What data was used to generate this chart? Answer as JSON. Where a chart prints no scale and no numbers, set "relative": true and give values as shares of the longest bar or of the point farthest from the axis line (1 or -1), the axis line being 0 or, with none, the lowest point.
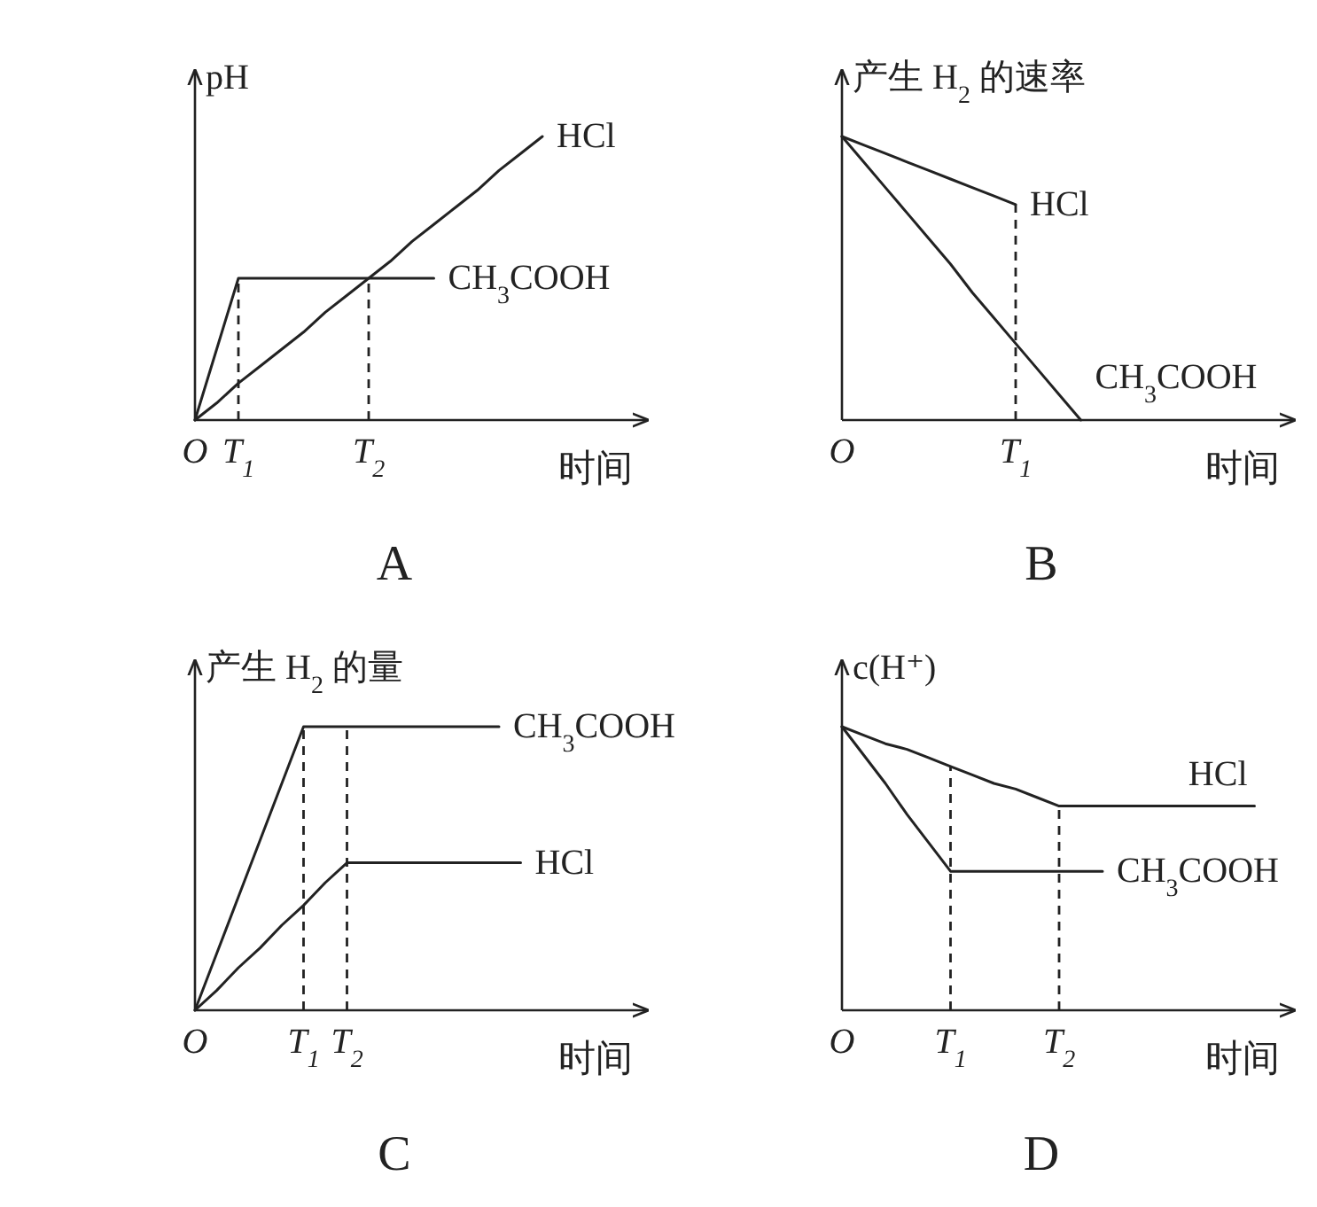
{
  "chart_data": [
    {
      "type": "line",
      "relative": true,
      "title": "A",
      "ylabel": "pH",
      "xlabel": "时间",
      "legend": false,
      "categories": [
        "O",
        null,
        "T$_{1}$",
        null,
        null,
        null,
        null,
        null,
        "T$_{2}$",
        null,
        null,
        null,
        null,
        null,
        null,
        null,
        null,
        null,
        null,
        null,
        null
      ],
      "ref_lines": [
        {
          "axis": "x",
          "value": "T$_{1}$",
          "line_style": "dashed"
        },
        {
          "axis": "x",
          "value": "T$_{2}$",
          "line_style": "dashed"
        }
      ],
      "series": [
        {
          "name": "HCl",
          "color": "#222222",
          "values": [
            0,
            0.06,
            0.13,
            0.19,
            0.25,
            0.31,
            0.38,
            0.44,
            0.5,
            0.56,
            0.63,
            0.69,
            0.75,
            0.81,
            0.88,
            0.94,
            1,
            null,
            null,
            null,
            null
          ]
        },
        {
          "name": "CH$_{3}$COOH",
          "color": "#222222",
          "values": [
            0,
            0.25,
            0.5,
            0.5,
            0.5,
            0.5,
            0.5,
            0.5,
            0.5,
            0.5,
            0.5,
            0.5,
            null,
            null,
            null,
            null,
            null,
            null,
            null,
            null,
            null
          ]
        }
      ]
    },
    {
      "type": "line",
      "relative": true,
      "title": "B",
      "ylabel": "产生 H$_{2}$ 的速率",
      "xlabel": "时间",
      "legend": false,
      "categories": [
        "O",
        null,
        null,
        null,
        null,
        null,
        null,
        null,
        "T$_{1}$",
        null,
        null,
        null,
        null,
        null,
        null,
        null,
        null,
        null,
        null,
        null,
        null
      ],
      "ref_lines": [
        {
          "axis": "x",
          "value": "T$_{1}$",
          "line_style": "dashed"
        }
      ],
      "series": [
        {
          "name": "HCl",
          "color": "#222222",
          "values": [
            1,
            0.97,
            0.94,
            0.91,
            0.88,
            0.85,
            0.82,
            0.79,
            0.76,
            null,
            null,
            null,
            null,
            null,
            null,
            null,
            null,
            null,
            null,
            null,
            null
          ]
        },
        {
          "name": "CH$_{3}$COOH",
          "color": "#222222",
          "values": [
            1,
            0.91,
            0.82,
            0.73,
            0.64,
            0.55,
            0.45,
            0.36,
            0.27,
            0.18,
            0.09,
            0,
            null,
            null,
            null,
            null,
            null,
            null,
            null,
            null,
            null
          ]
        }
      ]
    },
    {
      "type": "line",
      "relative": true,
      "title": "C",
      "ylabel": "产生 H$_{2}$ 的量",
      "xlabel": "时间",
      "legend": false,
      "categories": [
        "O",
        null,
        null,
        null,
        null,
        "T$_{1}$",
        null,
        "T$_{2}$",
        null,
        null,
        null,
        null,
        null,
        null,
        null,
        null,
        null,
        null,
        null,
        null,
        null
      ],
      "ref_lines": [
        {
          "axis": "x",
          "value": "T$_{1}$",
          "line_style": "dashed"
        },
        {
          "axis": "x",
          "value": "T$_{2}$",
          "line_style": "dashed"
        }
      ],
      "series": [
        {
          "name": "CH$_{3}$COOH",
          "color": "#222222",
          "values": [
            0,
            0.2,
            0.4,
            0.6,
            0.8,
            1,
            1,
            1,
            1,
            1,
            1,
            1,
            1,
            1,
            1,
            null,
            null,
            null,
            null,
            null,
            null
          ]
        },
        {
          "name": "HCl",
          "color": "#222222",
          "values": [
            0,
            0.07,
            0.15,
            0.22,
            0.3,
            0.37,
            0.45,
            0.52,
            0.52,
            0.52,
            0.52,
            0.52,
            0.52,
            0.52,
            0.52,
            0.52,
            null,
            null,
            null,
            null,
            null
          ]
        }
      ]
    },
    {
      "type": "line",
      "relative": true,
      "title": "D",
      "ylabel": "c(H⁺)",
      "xlabel": "时间",
      "legend": false,
      "categories": [
        "O",
        null,
        null,
        null,
        null,
        "T$_{1}$",
        null,
        null,
        null,
        null,
        "T$_{2}$",
        null,
        null,
        null,
        null,
        null,
        null,
        null,
        null,
        null,
        null
      ],
      "ref_lines": [
        {
          "axis": "x",
          "value": "T$_{1}$",
          "line_style": "dashed"
        },
        {
          "axis": "x",
          "value": "T$_{2}$",
          "line_style": "dashed"
        }
      ],
      "series": [
        {
          "name": "HCl",
          "color": "#222222",
          "values": [
            1,
            0.97,
            0.94,
            0.92,
            0.89,
            0.86,
            0.83,
            0.8,
            0.78,
            0.75,
            0.72,
            0.72,
            0.72,
            0.72,
            0.72,
            0.72,
            0.72,
            0.72,
            0.72,
            0.72,
            null
          ]
        },
        {
          "name": "CH$_{3}$COOH",
          "color": "#222222",
          "values": [
            1,
            0.9,
            0.8,
            0.69,
            0.59,
            0.49,
            0.49,
            0.49,
            0.49,
            0.49,
            0.49,
            0.49,
            0.49,
            null,
            null,
            null,
            null,
            null,
            null,
            null,
            null
          ]
        }
      ]
    }
  ]
}
